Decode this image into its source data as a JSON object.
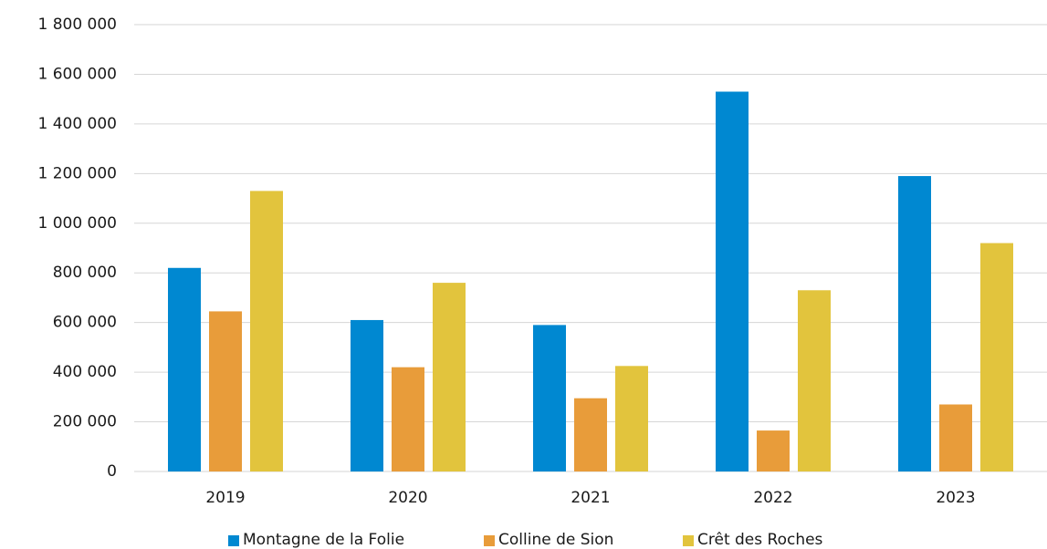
{
  "chart_data": {
    "type": "bar",
    "categories": [
      "2019",
      "2020",
      "2021",
      "2022",
      "2023"
    ],
    "series": [
      {
        "name": "Montagne de la Folie",
        "color": "#0088d1",
        "values": [
          820000,
          610000,
          590000,
          1530000,
          1190000
        ]
      },
      {
        "name": "Colline de Sion",
        "color": "#e89c3a",
        "values": [
          645000,
          420000,
          295000,
          165000,
          270000
        ]
      },
      {
        "name": "Crêt des Roches",
        "color": "#e2c43d",
        "values": [
          1130000,
          760000,
          425000,
          730000,
          920000
        ]
      }
    ],
    "ylim": [
      0,
      1800000
    ],
    "yticks": [
      0,
      {
        "value": 200000,
        "label": "200 000"
      },
      {
        "value": 400000,
        "label": "400 000"
      },
      {
        "value": 600000,
        "label": "600 000"
      },
      {
        "value": 800000,
        "label": "800 000"
      },
      {
        "value": 1000000,
        "label": "1 000 000"
      },
      {
        "value": 1200000,
        "label": "1 200 000"
      },
      {
        "value": 1400000,
        "label": "1 400 000"
      },
      {
        "value": 1600000,
        "label": "1 600 000"
      },
      {
        "value": 1800000,
        "label": "1 800 000"
      }
    ],
    "grid": true,
    "legend": "bottom"
  }
}
